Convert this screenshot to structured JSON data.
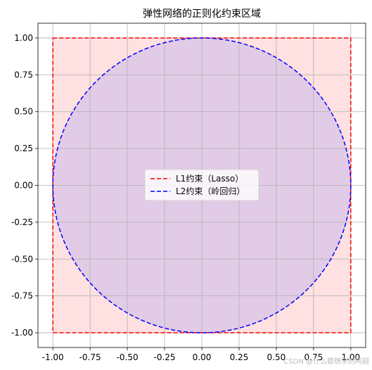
{
  "watermark": "CSDN @什么都想学的阿超",
  "chart_data": {
    "type": "area",
    "title": "弹性网络的正则化约束区域",
    "xlabel": "",
    "ylabel": "",
    "xlim": [
      -1.1,
      1.1
    ],
    "ylim": [
      -1.1,
      1.1
    ],
    "xticks": [
      -1.0,
      -0.75,
      -0.5,
      -0.25,
      0.0,
      0.25,
      0.5,
      0.75,
      1.0
    ],
    "yticks": [
      -1.0,
      -0.75,
      -0.5,
      -0.25,
      0.0,
      0.25,
      0.5,
      0.75,
      1.0
    ],
    "xtick_labels": [
      "-1.00",
      "-0.75",
      "-0.50",
      "-0.25",
      "0.00",
      "0.25",
      "0.50",
      "0.75",
      "1.00"
    ],
    "ytick_labels": [
      "-1.00",
      "-0.75",
      "-0.50",
      "-0.25",
      "0.00",
      "0.25",
      "0.50",
      "0.75",
      "1.00"
    ],
    "grid": true,
    "legend_position": "center",
    "series": [
      {
        "name": "L1约束（Lasso）",
        "shape": "square",
        "x": [
          -1,
          1,
          1,
          -1,
          -1
        ],
        "y": [
          1,
          1,
          -1,
          -1,
          1
        ],
        "color": "#ff0000",
        "fill": "#ffe1e1",
        "linestyle": "dashed"
      },
      {
        "name": "L2约束（岭回归）",
        "shape": "circle",
        "center": [
          0,
          0
        ],
        "radius": 1,
        "color": "#0000ff",
        "fill": "#e2cbe6",
        "linestyle": "dashed"
      }
    ]
  }
}
